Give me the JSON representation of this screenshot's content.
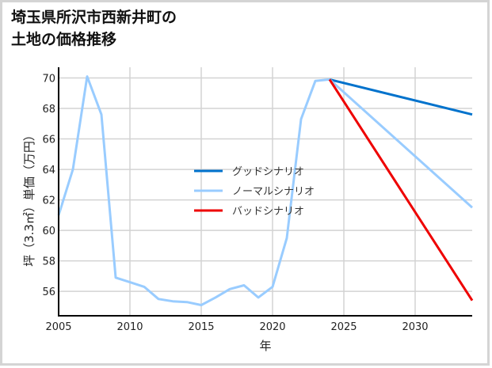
{
  "title": "埼玉県所沢市西新井町の\n土地の価格推移",
  "chart_data": {
    "type": "line",
    "title": "埼玉県所沢市西新井町の土地の価格推移",
    "xlabel": "年",
    "ylabel": "坪（3.3㎡）単価（万円）",
    "xlim": [
      2005,
      2034
    ],
    "ylim": [
      54.4,
      70.7
    ],
    "xticks": [
      2005,
      2010,
      2015,
      2020,
      2025,
      2030
    ],
    "yticks": [
      56,
      58,
      60,
      62,
      64,
      66,
      68,
      70
    ],
    "grid": true,
    "legend_position": "center",
    "series": [
      {
        "name": "ノーマルシナリオ (実績)",
        "color": "#99ccff",
        "x": [
          2005,
          2006,
          2007,
          2008,
          2009,
          2010,
          2011,
          2012,
          2013,
          2014,
          2015,
          2016,
          2017,
          2018,
          2019,
          2020,
          2021,
          2022,
          2023,
          2024
        ],
        "y": [
          61.0,
          64.0,
          70.1,
          67.6,
          56.9,
          56.6,
          56.3,
          55.5,
          55.35,
          55.3,
          55.1,
          55.6,
          56.15,
          56.4,
          55.6,
          56.3,
          59.5,
          67.3,
          69.8,
          69.9
        ]
      },
      {
        "name": "グッドシナリオ",
        "color": "#0072cc",
        "x": [
          2024,
          2034
        ],
        "y": [
          69.9,
          67.6
        ]
      },
      {
        "name": "ノーマルシナリオ",
        "color": "#99ccff",
        "x": [
          2024,
          2034
        ],
        "y": [
          69.9,
          61.5
        ]
      },
      {
        "name": "バッドシナリオ",
        "color": "#ee0000",
        "x": [
          2024,
          2034
        ],
        "y": [
          69.9,
          55.4
        ]
      }
    ],
    "legend": [
      {
        "label": "グッドシナリオ",
        "color": "#0072cc"
      },
      {
        "label": "ノーマルシナリオ",
        "color": "#99ccff"
      },
      {
        "label": "バッドシナリオ",
        "color": "#ee0000"
      }
    ]
  }
}
